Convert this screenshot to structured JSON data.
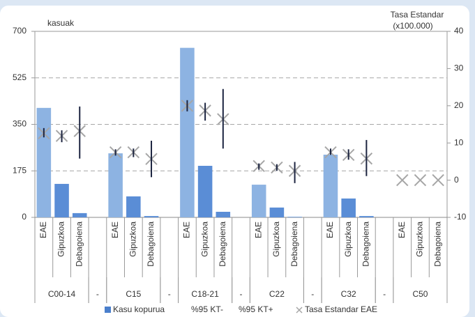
{
  "chart_data": {
    "type": "bar-errorbar-marker",
    "y_label": "kasuak",
    "y2_label": [
      "Tasa Estandar",
      "(x100.000)"
    ],
    "groups": [
      "C00-14",
      "-",
      "C15",
      "-",
      "C18-21",
      "-",
      "C22",
      "-",
      "C32",
      "-",
      "C50"
    ],
    "categories": [
      "EAE",
      "Gipuzkoa",
      "Debagoiena",
      null,
      "EAE",
      "Gipuzkoa",
      "Debagoiena",
      null,
      "EAE",
      "Gipuzkoa",
      "Debagoiena",
      null,
      "EAE",
      "Gipuzkoa",
      "Debagoiena",
      null,
      "EAE",
      "Gipuzkoa",
      "Debagoiena",
      null,
      "EAE",
      "Gipuzkoa",
      "Debagoiena"
    ],
    "ylim": [
      0,
      700
    ],
    "yticks": [
      0,
      175,
      350,
      525,
      700
    ],
    "y2lim": [
      -10,
      40
    ],
    "y2ticks": [
      -10,
      0,
      10,
      20,
      30,
      40
    ],
    "grid": true,
    "series": [
      {
        "name": "Kasu kopurua",
        "kind": "bar",
        "color": "#4a7fcc",
        "colors": [
          "#8db3e2",
          "#5a8dd6",
          "#5a8dd6"
        ],
        "values": [
          412,
          126,
          16,
          null,
          241,
          79,
          5,
          null,
          638,
          194,
          21,
          null,
          123,
          37,
          2,
          null,
          236,
          71,
          5,
          null,
          0,
          0,
          0
        ]
      },
      {
        "name": "%95 KT-",
        "kind": "error-low",
        "axis": "y2",
        "color": "#1c2440",
        "values": [
          11.5,
          10.2,
          5.8,
          null,
          6.6,
          6.2,
          0.8,
          null,
          18.5,
          16,
          8.5,
          null,
          2.8,
          2.5,
          -0.8,
          null,
          6.8,
          5.5,
          1.1,
          null,
          null,
          null,
          null
        ]
      },
      {
        "name": "%95 KT+",
        "kind": "error-high",
        "axis": "y2",
        "color": "#1c2440",
        "values": [
          14,
          13.4,
          19.8,
          null,
          8.3,
          8.5,
          10.6,
          null,
          21.5,
          20.8,
          24.5,
          null,
          4.5,
          4.3,
          4.9,
          null,
          8.5,
          8.3,
          10.8,
          null,
          null,
          null,
          null
        ]
      },
      {
        "name": "Tasa Estandar EAE",
        "kind": "marker",
        "axis": "y2",
        "color": "#a6a6a6",
        "values": [
          12.6,
          11.9,
          13.2,
          null,
          7.5,
          7.5,
          5.7,
          null,
          20,
          18.7,
          16.4,
          null,
          3.8,
          3.4,
          2.5,
          null,
          7.5,
          6.8,
          5.8,
          null,
          0,
          0,
          0
        ]
      }
    ]
  }
}
